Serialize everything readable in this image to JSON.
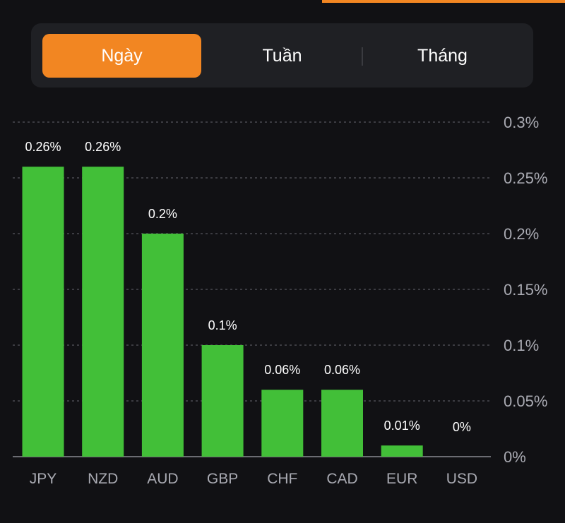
{
  "colors": {
    "background": "#111114",
    "panel": "#1f2024",
    "accent": "#f28622",
    "bar": "#42bf38",
    "grid": "#4a4b52",
    "axis_text": "#a9aab2",
    "label_text": "#ffffff"
  },
  "tabs": [
    {
      "label": "Ngày",
      "active": true
    },
    {
      "label": "Tuần",
      "active": false
    },
    {
      "label": "Tháng",
      "active": false
    }
  ],
  "chart_data": {
    "type": "bar",
    "categories": [
      "JPY",
      "NZD",
      "AUD",
      "GBP",
      "CHF",
      "CAD",
      "EUR",
      "USD"
    ],
    "values": [
      0.26,
      0.26,
      0.2,
      0.1,
      0.06,
      0.06,
      0.01,
      0
    ],
    "value_labels": [
      "0.26%",
      "0.26%",
      "0.2%",
      "0.1%",
      "0.06%",
      "0.06%",
      "0.01%",
      "0%"
    ],
    "ylim": [
      0,
      0.3
    ],
    "yticks": [
      0,
      0.05,
      0.1,
      0.15,
      0.2,
      0.25,
      0.3
    ],
    "ytick_labels": [
      "0%",
      "0.05%",
      "0.1%",
      "0.15%",
      "0.2%",
      "0.25%",
      "0.3%"
    ],
    "y_axis_side": "right",
    "grid": true,
    "title": "",
    "xlabel": "",
    "ylabel": ""
  }
}
